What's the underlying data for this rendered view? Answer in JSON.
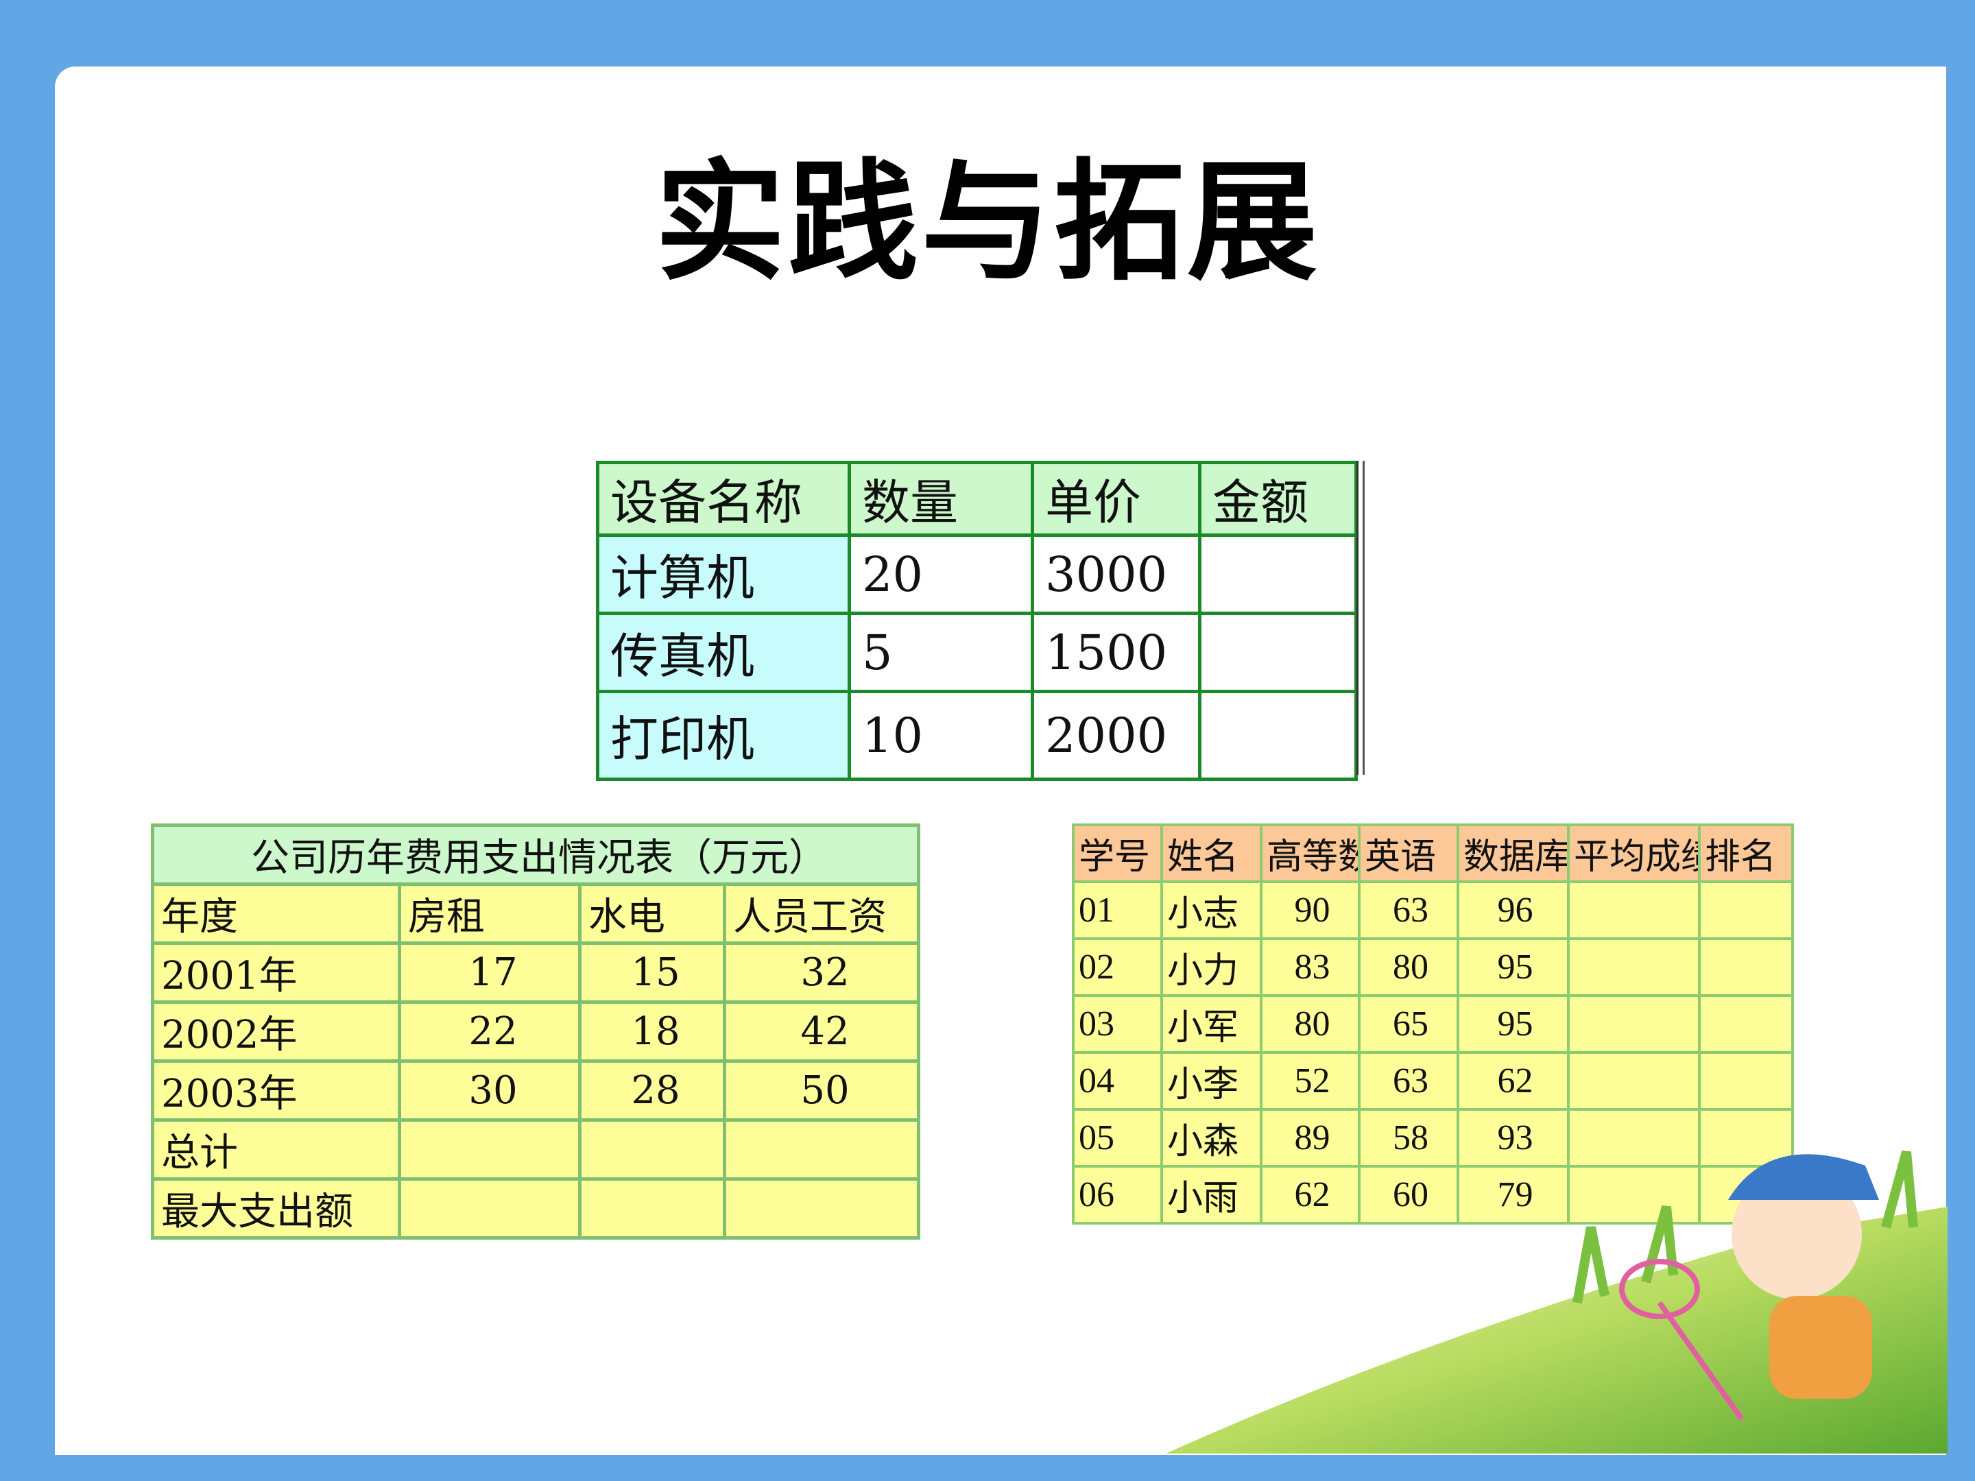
{
  "title": "实践与拓展",
  "equipment_table": {
    "headers": [
      "设备名称",
      "数量",
      "单价",
      "金额"
    ],
    "rows": [
      [
        "计算机",
        "20",
        "3000",
        ""
      ],
      [
        "传真机",
        "5",
        "1500",
        ""
      ],
      [
        "打印机",
        "10",
        "2000",
        ""
      ]
    ]
  },
  "expense_table": {
    "caption": "公司历年费用支出情况表（万元）",
    "headers": [
      "年度",
      "房租",
      "水电",
      "人员工资"
    ],
    "rows": [
      [
        "2001年",
        "17",
        "15",
        "32"
      ],
      [
        "2002年",
        "22",
        "18",
        "42"
      ],
      [
        "2003年",
        "30",
        "28",
        "50"
      ],
      [
        "总计",
        "",
        "",
        ""
      ],
      [
        "最大支出额",
        "",
        "",
        ""
      ]
    ]
  },
  "grade_table": {
    "headers": [
      "学号",
      "姓名",
      "高等数",
      "英语",
      "数据库抖",
      "平均成绩",
      "排名"
    ],
    "rows": [
      [
        "01",
        "小志",
        "90",
        "63",
        "96",
        "",
        ""
      ],
      [
        "02",
        "小力",
        "83",
        "80",
        "95",
        "",
        ""
      ],
      [
        "03",
        "小军",
        "80",
        "65",
        "95",
        "",
        ""
      ],
      [
        "04",
        "小李",
        "52",
        "63",
        "62",
        "",
        ""
      ],
      [
        "05",
        "小森",
        "89",
        "58",
        "93",
        "",
        ""
      ],
      [
        "06",
        "小雨",
        "62",
        "60",
        "79",
        "",
        ""
      ]
    ]
  },
  "colors": {
    "background": "#62a6e6",
    "equipment_header": "#ccf8cc",
    "equipment_name": "#c8fcfc",
    "cell_yellow": "#ffff99",
    "grade_header": "#fcc898"
  }
}
